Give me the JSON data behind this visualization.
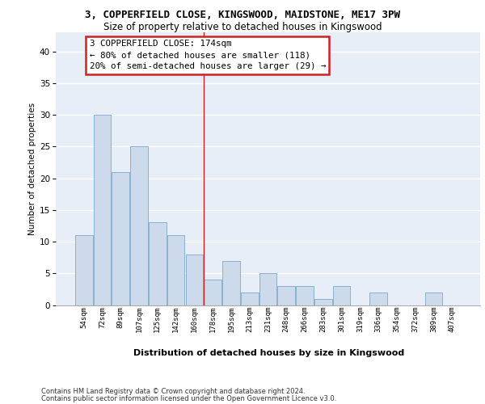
{
  "title1": "3, COPPERFIELD CLOSE, KINGSWOOD, MAIDSTONE, ME17 3PW",
  "title2": "Size of property relative to detached houses in Kingswood",
  "xlabel": "Distribution of detached houses by size in Kingswood",
  "ylabel": "Number of detached properties",
  "categories": [
    "54sqm",
    "72sqm",
    "89sqm",
    "107sqm",
    "125sqm",
    "142sqm",
    "160sqm",
    "178sqm",
    "195sqm",
    "213sqm",
    "231sqm",
    "248sqm",
    "266sqm",
    "283sqm",
    "301sqm",
    "319sqm",
    "336sqm",
    "354sqm",
    "372sqm",
    "389sqm",
    "407sqm"
  ],
  "values": [
    11,
    30,
    21,
    25,
    13,
    11,
    8,
    4,
    7,
    2,
    5,
    3,
    3,
    1,
    3,
    0,
    2,
    0,
    0,
    2,
    0
  ],
  "bar_color": "#ccdaeb",
  "bar_edge_color": "#7aaac8",
  "background_color": "#e8eef8",
  "grid_color": "#ffffff",
  "subject_vline_x": 6.5,
  "vline_color": "#cc2222",
  "annotation_line1": "3 COPPERFIELD CLOSE: 174sqm",
  "annotation_line2": "← 80% of detached houses are smaller (118)",
  "annotation_line3": "20% of semi-detached houses are larger (29) →",
  "annotation_box_facecolor": "#ffffff",
  "annotation_box_edgecolor": "#cc2222",
  "footer1": "Contains HM Land Registry data © Crown copyright and database right 2024.",
  "footer2": "Contains public sector information licensed under the Open Government Licence v3.0.",
  "ylim": [
    0,
    43
  ],
  "yticks": [
    0,
    5,
    10,
    15,
    20,
    25,
    30,
    35,
    40
  ],
  "fig_bg": "#ffffff"
}
